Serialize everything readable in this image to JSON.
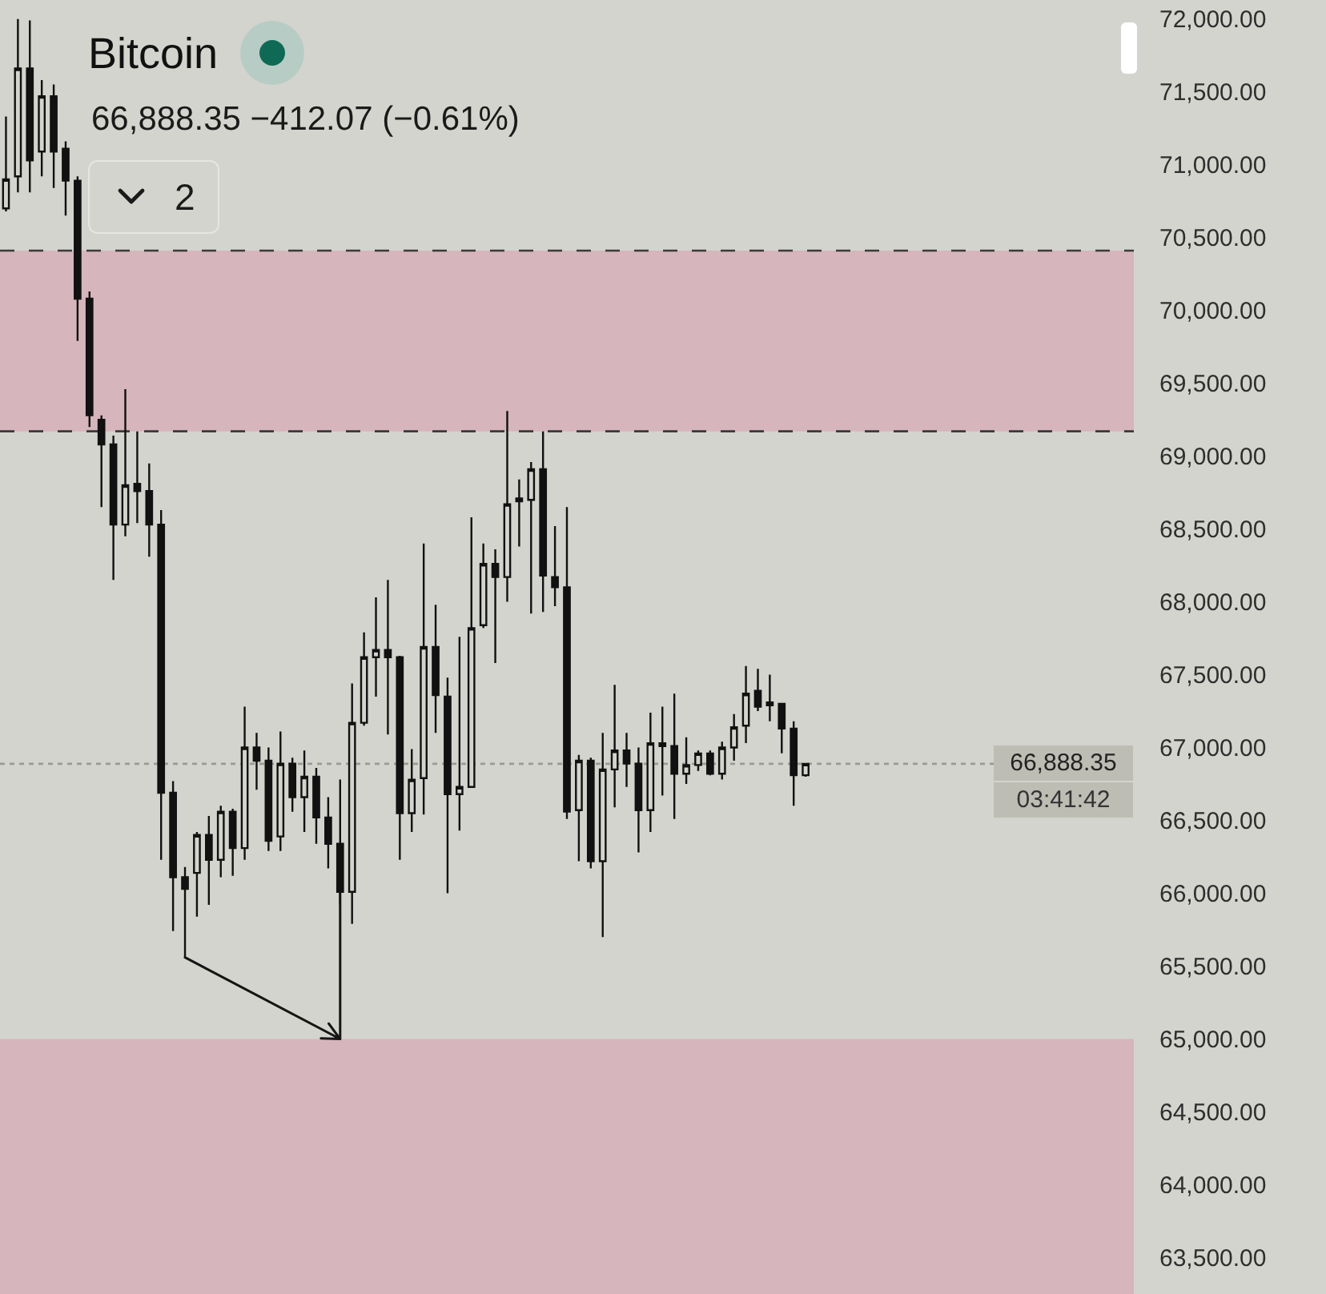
{
  "chart_data": {
    "type": "candlestick",
    "title": "Bitcoin",
    "subtitle": "66,888.35 −412.07 (−0.61%)",
    "categories": [
      null,
      null,
      null,
      null,
      null,
      null,
      null,
      null,
      null,
      null,
      null,
      null,
      null,
      null,
      null,
      null,
      null,
      null,
      null,
      null,
      null,
      null,
      null,
      null,
      null,
      null,
      null,
      null,
      null,
      null,
      null,
      null,
      null,
      null,
      null,
      null,
      null,
      null,
      null,
      null,
      null,
      null,
      null,
      null,
      null,
      null,
      null,
      null,
      null,
      null,
      null,
      null,
      null,
      null,
      null,
      null,
      null,
      null,
      null,
      null,
      null,
      null,
      null,
      null,
      null,
      null,
      null,
      null,
      null,
      null,
      null,
      null,
      null,
      null,
      null,
      null,
      null,
      null,
      null,
      null,
      null,
      null,
      null,
      null,
      null,
      null,
      null,
      null,
      null,
      null,
      null,
      null,
      null,
      null,
      null
    ],
    "ohlc": [
      [
        70700,
        71330,
        70680,
        70900
      ],
      [
        70920,
        72000,
        70810,
        71660
      ],
      [
        71660,
        71990,
        70810,
        71030
      ],
      [
        71090,
        71580,
        70920,
        71470
      ],
      [
        71470,
        71550,
        70840,
        71090
      ],
      [
        71110,
        71160,
        70650,
        70890
      ],
      [
        70890,
        70920,
        69790,
        70080
      ],
      [
        70080,
        70130,
        69200,
        69280
      ],
      [
        69250,
        69280,
        68650,
        69080
      ],
      [
        69080,
        69140,
        68150,
        68530
      ],
      [
        68530,
        69460,
        68450,
        68800
      ],
      [
        68810,
        69170,
        68540,
        68760
      ],
      [
        68760,
        68950,
        68310,
        68530
      ],
      [
        68530,
        68630,
        66230,
        66690
      ],
      [
        66690,
        66770,
        65740,
        66110
      ],
      [
        66110,
        66180,
        65560,
        66030
      ],
      [
        66140,
        66420,
        65840,
        66400
      ],
      [
        66400,
        66530,
        65920,
        66230
      ],
      [
        66230,
        66600,
        66110,
        66560
      ],
      [
        66560,
        66580,
        66120,
        66310
      ],
      [
        66310,
        67280,
        66230,
        67000
      ],
      [
        67000,
        67100,
        66710,
        66910
      ],
      [
        66910,
        67000,
        66290,
        66360
      ],
      [
        66390,
        67110,
        66290,
        66890
      ],
      [
        66890,
        66930,
        66560,
        66660
      ],
      [
        66660,
        66980,
        66420,
        66800
      ],
      [
        66800,
        66860,
        66340,
        66520
      ],
      [
        66520,
        66660,
        66170,
        66340
      ],
      [
        66340,
        66780,
        65920,
        66010
      ],
      [
        66010,
        67440,
        65790,
        67170
      ],
      [
        67170,
        67790,
        67150,
        67620
      ],
      [
        67620,
        68030,
        67350,
        67670
      ],
      [
        67670,
        68150,
        67090,
        67620
      ],
      [
        67620,
        67630,
        66230,
        66550
      ],
      [
        66550,
        66990,
        66420,
        66780
      ],
      [
        66790,
        68400,
        66540,
        67690
      ],
      [
        67690,
        67980,
        67100,
        67360
      ],
      [
        67350,
        67480,
        66000,
        66680
      ],
      [
        66680,
        67760,
        66430,
        66730
      ],
      [
        66730,
        68580,
        66730,
        67820
      ],
      [
        67840,
        68400,
        67820,
        68260
      ],
      [
        68260,
        68360,
        67580,
        68170
      ],
      [
        68170,
        69310,
        68000,
        68670
      ],
      [
        68690,
        68840,
        68380,
        68710
      ],
      [
        68700,
        68960,
        67920,
        68910
      ],
      [
        68910,
        69170,
        67930,
        68180
      ],
      [
        68170,
        68520,
        67970,
        68100
      ],
      [
        68100,
        68650,
        66510,
        66560
      ],
      [
        66570,
        66950,
        66220,
        66910
      ],
      [
        66910,
        66930,
        66170,
        66220
      ],
      [
        66220,
        67100,
        65700,
        66850
      ],
      [
        66850,
        67430,
        66590,
        66980
      ],
      [
        66980,
        67100,
        66730,
        66890
      ],
      [
        66890,
        67000,
        66280,
        66570
      ],
      [
        66570,
        67240,
        66420,
        67030
      ],
      [
        67030,
        67280,
        66670,
        67010
      ],
      [
        67010,
        67370,
        66510,
        66820
      ],
      [
        66820,
        67070,
        66750,
        66880
      ],
      [
        66880,
        66980,
        66840,
        66960
      ],
      [
        66960,
        66980,
        66810,
        66820
      ],
      [
        66820,
        67040,
        66780,
        67000
      ],
      [
        67000,
        67230,
        66910,
        67140
      ],
      [
        67150,
        67560,
        67030,
        67370
      ],
      [
        67390,
        67540,
        67250,
        67280
      ],
      [
        67290,
        67500,
        67180,
        67310
      ],
      [
        67300,
        67300,
        66960,
        67130
      ],
      [
        67130,
        67180,
        66600,
        66810
      ],
      [
        66810,
        66890,
        66800,
        66888.35
      ],
      null,
      null,
      null,
      null,
      null,
      null,
      null,
      null,
      null,
      null,
      null,
      null,
      null,
      null,
      null,
      null,
      null,
      null,
      null,
      null,
      null,
      null,
      null,
      null,
      null,
      null,
      null
    ],
    "color": "#111111",
    "ylim": [
      63250,
      72130
    ],
    "yticks": [
      {
        "value": 63500,
        "label": "63,500.00"
      },
      {
        "value": 64000,
        "label": "64,000.00"
      },
      {
        "value": 64500,
        "label": "64,500.00"
      },
      {
        "value": 65000,
        "label": "65,000.00"
      },
      {
        "value": 65500,
        "label": "65,500.00"
      },
      {
        "value": 66000,
        "label": "66,000.00"
      },
      {
        "value": 66500,
        "label": "66,500.00"
      },
      {
        "value": 67000,
        "label": "67,000.00"
      },
      {
        "value": 67500,
        "label": "67,500.00"
      },
      {
        "value": 68000,
        "label": "68,000.00"
      },
      {
        "value": 68500,
        "label": "68,500.00"
      },
      {
        "value": 69000,
        "label": "69,000.00"
      },
      {
        "value": 69500,
        "label": "69,500.00"
      },
      {
        "value": 70000,
        "label": "70,000.00"
      },
      {
        "value": 70500,
        "label": "70,500.00"
      },
      {
        "value": 71000,
        "label": "71,000.00"
      },
      {
        "value": 71500,
        "label": "71,500.00"
      },
      {
        "value": 72000,
        "label": "72,000.00"
      }
    ],
    "tick_labels": "y",
    "bands": [
      {
        "axis": "y",
        "from": 69170,
        "to": 70410,
        "color": "#d6b5bc"
      },
      {
        "axis": "y",
        "from": 63250,
        "to": 65000,
        "color": "#d6b5bc"
      }
    ],
    "ref_lines": [
      {
        "axis": "y",
        "value": 70410,
        "color": "#3a3a3a",
        "line_style": "dashed"
      },
      {
        "axis": "y",
        "value": 69170,
        "color": "#3a3a3a",
        "line_style": "dashed"
      },
      {
        "axis": "y",
        "value": 66888.35,
        "label": "66,888.35",
        "color": "#9a9a94",
        "line_style": "dotted"
      }
    ],
    "annotations": [
      "03:41:42",
      "2"
    ]
  }
}
